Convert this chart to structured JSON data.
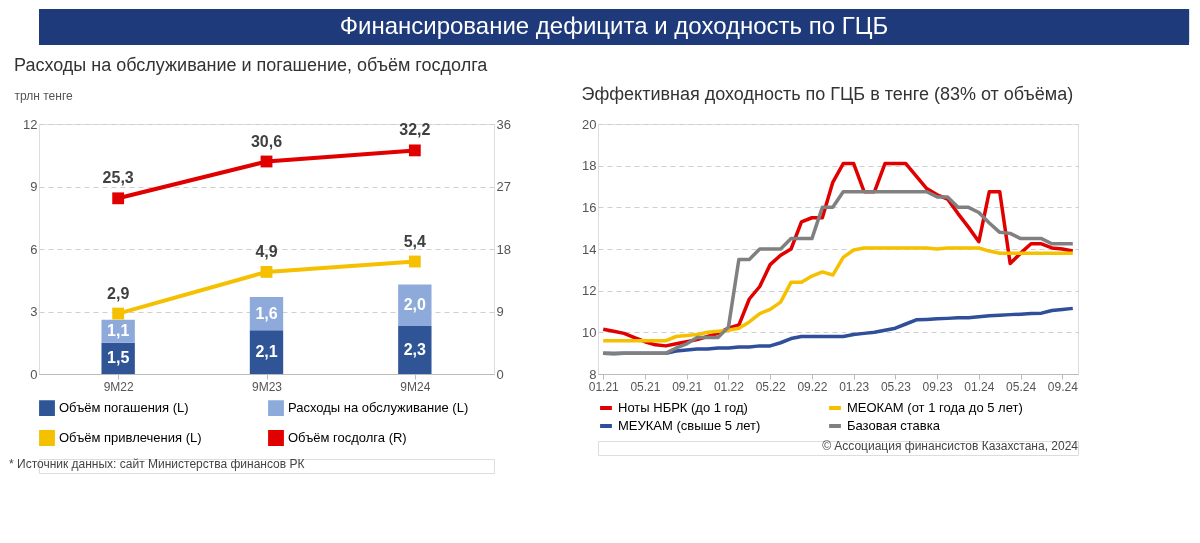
{
  "chart_data": [
    {
      "type": "other",
      "title": "Финансирование дефицита и доходность по ГЦБ"
    },
    {
      "type": "bar",
      "title": "Расходы на обслуживание и погашение, объём госдолга",
      "ylabel": "трлн тенге",
      "categories": [
        "9M22",
        "9M23",
        "9M24"
      ],
      "stacked": true,
      "ylim": [
        0,
        12
      ],
      "yticks": [
        0,
        3,
        6,
        9,
        12
      ],
      "y2lim": [
        0,
        36
      ],
      "y2ticks": [
        0,
        9,
        18,
        27,
        36
      ],
      "grid": "y",
      "legend": "bottom",
      "marker": "square",
      "series": [
        {
          "name": "Объём погашения (L)",
          "color": "#2f5597",
          "values": [
            1.5,
            2.1,
            2.3
          ],
          "value_labels": [
            "1,5",
            "2,1",
            "2,3"
          ]
        },
        {
          "name": "Расходы на обслуживание (L)",
          "color": "#8eaadb",
          "values": [
            1.1,
            1.6,
            2.0
          ],
          "value_labels": [
            "1,1",
            "1,6",
            "2,0"
          ]
        },
        {
          "name": "Объём привлечения (L)",
          "type": "line",
          "color": "#f5c000",
          "values": [
            2.9,
            4.9,
            5.4
          ],
          "value_labels": [
            "2,9",
            "4,9",
            "5,4"
          ]
        },
        {
          "name": "Объём госдолга (R)",
          "type": "line",
          "axis": "y2",
          "color": "#e00000",
          "values": [
            25.3,
            30.6,
            32.2
          ],
          "value_labels": [
            "25,3",
            "30,6",
            "32,2"
          ]
        }
      ],
      "annotations": [
        "* Источник данных: сайт Министерства финансов РК"
      ]
    },
    {
      "type": "line",
      "title": "Эффективная доходность по ГЦБ в тенге (83% от объёма)",
      "categories": [
        "01.21",
        null,
        null,
        null,
        "05.21",
        null,
        null,
        null,
        "09.21",
        null,
        null,
        null,
        "01.22",
        null,
        null,
        null,
        "05.22",
        null,
        null,
        null,
        "09.22",
        null,
        null,
        null,
        "01.23",
        null,
        null,
        null,
        "05.23",
        null,
        null,
        null,
        "09.23",
        null,
        null,
        null,
        "01.24",
        null,
        null,
        null,
        "05.24",
        null,
        null,
        null,
        "09.24",
        null
      ],
      "ylim": [
        8,
        20
      ],
      "yticks": [
        8,
        10,
        12,
        14,
        16,
        18,
        20
      ],
      "grid": "y",
      "legend": "bottom",
      "series": [
        {
          "name": "Ноты НБРК (до 1 год)",
          "color": "#e00000",
          "values": [
            10.15,
            10.05,
            9.95,
            9.75,
            9.55,
            9.4,
            9.35,
            9.45,
            9.55,
            9.65,
            9.8,
            9.95,
            10.2,
            10.35,
            11.6,
            12.2,
            13.25,
            13.7,
            14.0,
            15.3,
            15.5,
            15.5,
            17.2,
            18.1,
            18.1,
            16.75,
            16.75,
            18.1,
            18.1,
            18.1,
            17.5,
            16.9,
            16.6,
            16.4,
            15.7,
            15.05,
            14.35,
            16.75,
            16.75,
            13.3,
            13.8,
            14.25,
            14.25,
            14.05,
            14.0,
            13.9
          ]
        },
        {
          "name": "МЕОКАМ (от 1 года до 5 лет)",
          "color": "#f5c000",
          "values": [
            9.6,
            9.6,
            9.6,
            9.6,
            9.6,
            9.6,
            9.6,
            9.8,
            9.85,
            9.9,
            10.0,
            10.05,
            10.1,
            10.2,
            10.5,
            10.9,
            11.1,
            11.45,
            12.4,
            12.4,
            12.7,
            12.9,
            12.75,
            13.6,
            13.95,
            14.05,
            14.05,
            14.05,
            14.05,
            14.05,
            14.05,
            14.05,
            14.0,
            14.05,
            14.05,
            14.05,
            14.05,
            13.9,
            13.8,
            13.8,
            13.8,
            13.8,
            13.8,
            13.8,
            13.8,
            13.8
          ]
        },
        {
          "name": "МЕУКАМ (свыше 5 лет)",
          "color": "#2f4f9a",
          "values": [
            9.0,
            8.97,
            9.0,
            9.0,
            9.0,
            9.0,
            9.0,
            9.1,
            9.15,
            9.2,
            9.2,
            9.25,
            9.25,
            9.3,
            9.3,
            9.35,
            9.35,
            9.5,
            9.7,
            9.8,
            9.8,
            9.8,
            9.8,
            9.8,
            9.9,
            9.95,
            10.0,
            10.1,
            10.2,
            10.4,
            10.6,
            10.62,
            10.65,
            10.67,
            10.7,
            10.7,
            10.75,
            10.8,
            10.82,
            10.85,
            10.87,
            10.9,
            10.92,
            11.05,
            11.1,
            11.15
          ]
        },
        {
          "name": "Базовая ставка",
          "color": "#808080",
          "values": [
            9.0,
            9.0,
            9.0,
            9.0,
            9.0,
            9.0,
            9.0,
            9.25,
            9.45,
            9.75,
            9.75,
            9.75,
            10.25,
            13.5,
            13.5,
            14.0,
            14.0,
            14.0,
            14.5,
            14.5,
            14.5,
            16.0,
            16.0,
            16.75,
            16.75,
            16.75,
            16.75,
            16.75,
            16.75,
            16.75,
            16.75,
            16.75,
            16.5,
            16.5,
            16.0,
            16.0,
            15.75,
            15.25,
            14.8,
            14.75,
            14.5,
            14.5,
            14.5,
            14.25,
            14.25,
            14.25
          ]
        }
      ],
      "annotations": [
        "© Ассоциация финансистов Казахстана, 2024"
      ]
    }
  ]
}
